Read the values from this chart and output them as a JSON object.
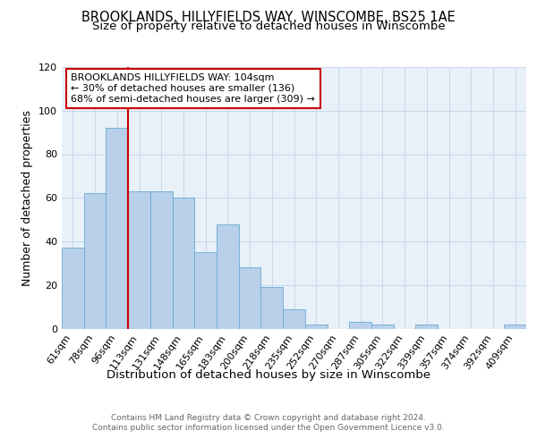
{
  "title_line1": "BROOKLANDS, HILLYFIELDS WAY, WINSCOMBE, BS25 1AE",
  "title_line2": "Size of property relative to detached houses in Winscombe",
  "xlabel": "Distribution of detached houses by size in Winscombe",
  "ylabel": "Number of detached properties",
  "categories": [
    "61sqm",
    "78sqm",
    "96sqm",
    "113sqm",
    "131sqm",
    "148sqm",
    "165sqm",
    "183sqm",
    "200sqm",
    "218sqm",
    "235sqm",
    "252sqm",
    "270sqm",
    "287sqm",
    "305sqm",
    "322sqm",
    "339sqm",
    "357sqm",
    "374sqm",
    "392sqm",
    "409sqm"
  ],
  "values": [
    37,
    62,
    92,
    63,
    63,
    60,
    35,
    48,
    28,
    19,
    9,
    2,
    0,
    3,
    2,
    0,
    2,
    0,
    0,
    0,
    2
  ],
  "bar_color": "#b8d0ea",
  "bar_edgecolor": "#6aaad4",
  "redline_index": 2,
  "annotation_line1": "BROOKLANDS HILLYFIELDS WAY: 104sqm",
  "annotation_line2": "← 30% of detached houses are smaller (136)",
  "annotation_line3": "68% of semi-detached houses are larger (309) →",
  "annotation_box_color": "#ffffff",
  "annotation_box_edgecolor": "#cc0000",
  "redline_color": "#cc0000",
  "ylim": [
    0,
    120
  ],
  "yticks": [
    0,
    20,
    40,
    60,
    80,
    100,
    120
  ],
  "grid_color": "#c8d8ec",
  "background_color": "#e8f0f8",
  "footer_line1": "Contains HM Land Registry data © Crown copyright and database right 2024.",
  "footer_line2": "Contains public sector information licensed under the Open Government Licence v3.0.",
  "title_fontsize": 10.5,
  "subtitle_fontsize": 9.5,
  "tick_fontsize": 8,
  "ylabel_fontsize": 9,
  "xlabel_fontsize": 9.5,
  "annotation_fontsize": 8,
  "footer_fontsize": 6.5
}
